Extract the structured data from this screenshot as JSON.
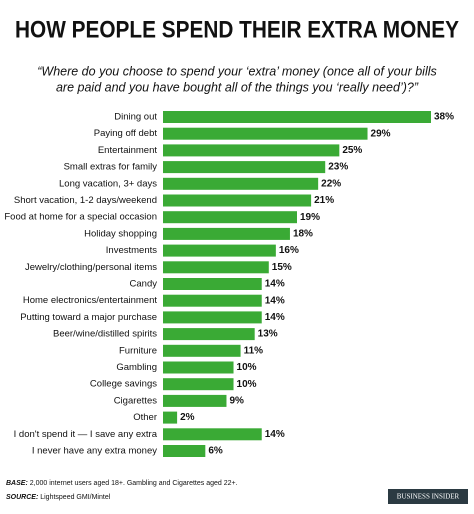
{
  "chart_data": {
    "type": "bar",
    "orientation": "horizontal",
    "title": "HOW PEOPLE SPEND THEIR EXTRA MONEY",
    "subtitle": [
      "“Where do you choose to spend your ‘extra’ money (once all of your bills",
      "are paid and you have bought all of the things you ‘really need’)?”"
    ],
    "categories": [
      "Dining out",
      "Paying off debt",
      "Entertainment",
      "Small extras for family",
      "Long vacation, 3+ days",
      "Short vacation, 1-2 days/weekend",
      "Food at home for a special occasion",
      "Holiday shopping",
      "Investments",
      "Jewelry/clothing/personal items",
      "Candy",
      "Home electronics/entertainment",
      "Putting toward a major purchase",
      "Beer/wine/distilled spirits",
      "Furniture",
      "Gambling",
      "College savings",
      "Cigarettes",
      "Other",
      "I don't spend it — I save any extra",
      "I never have any extra money"
    ],
    "values": [
      38,
      29,
      25,
      23,
      22,
      21,
      19,
      18,
      16,
      15,
      14,
      14,
      14,
      13,
      11,
      10,
      10,
      9,
      2,
      14,
      6
    ],
    "value_labels": [
      "38%",
      "29%",
      "25%",
      "23%",
      "22%",
      "21%",
      "19%",
      "18%",
      "16%",
      "15%",
      "14%",
      "14%",
      "14%",
      "13%",
      "11%",
      "10%",
      "10%",
      "9%",
      "2%",
      "14%",
      "6%"
    ],
    "color": "#3aaa35",
    "base_label": "BASE:",
    "base_text": "2,000 internet users aged 18+. Gambling and Cigarettes aged 22+.",
    "source_label": "SOURCE:",
    "source_text": "Lightspeed GMI/Mintel",
    "logo": "BUSINESS INSIDER"
  }
}
